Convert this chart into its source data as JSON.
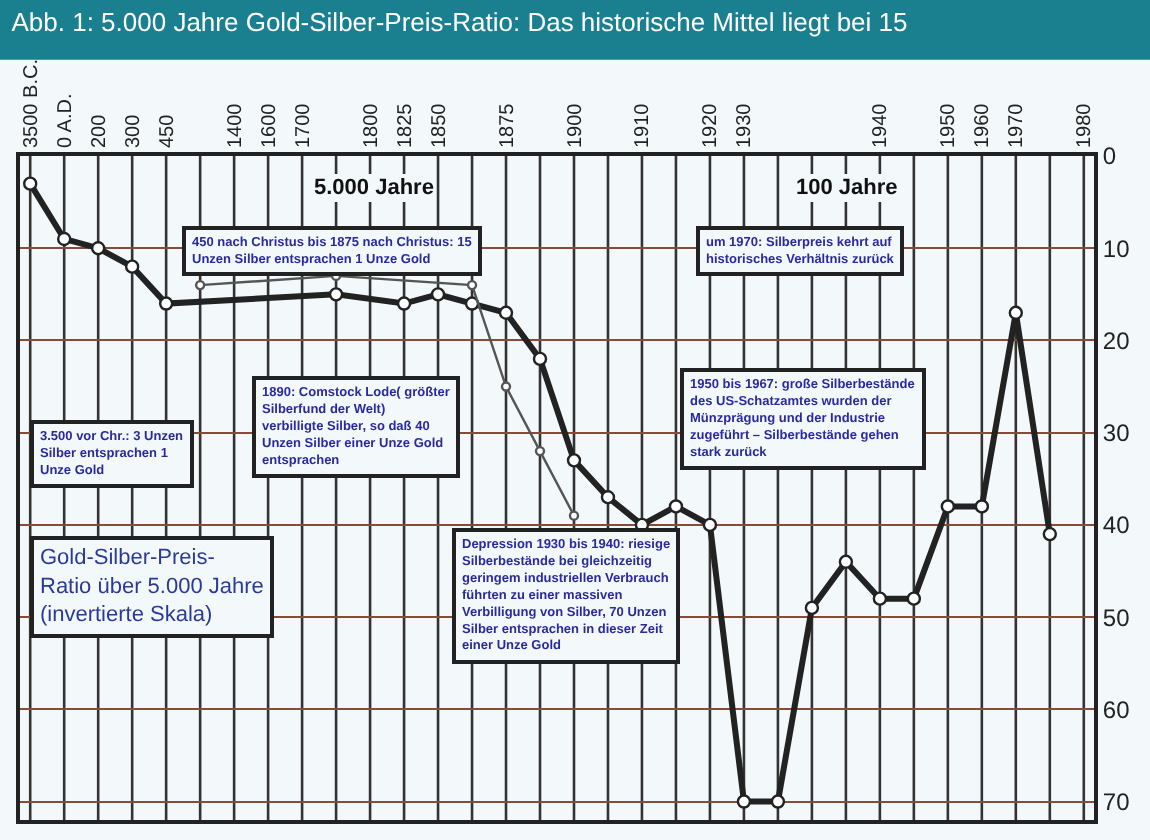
{
  "chart_data": {
    "type": "line",
    "title": "Abb. 1: 5.000 Jahre Gold-Silber-Preis-Ratio: Das historische Mittel liegt bei 15",
    "categories": [
      "3500 B.C.",
      "0 A.D.",
      "200",
      "300",
      "450",
      null,
      "1400",
      "1600",
      "1700",
      null,
      "1800",
      "1825",
      "1850",
      null,
      "1875",
      null,
      "1900",
      null,
      "1910",
      null,
      "1920",
      "1930",
      null,
      null,
      null,
      "1940",
      null,
      "1950",
      "1960",
      "1970",
      null,
      "1980"
    ],
    "series": [
      {
        "color": "#222222",
        "values": [
          3,
          9,
          10,
          12,
          16,
          null,
          null,
          null,
          null,
          15,
          null,
          16,
          15,
          16,
          17,
          22,
          33,
          37,
          40,
          38,
          40,
          70,
          70,
          49,
          44,
          48,
          48,
          38,
          38,
          17,
          41,
          null
        ]
      },
      {
        "color": "#555555",
        "values": [
          null,
          null,
          null,
          null,
          null,
          14,
          null,
          null,
          null,
          13,
          null,
          null,
          null,
          14,
          25,
          32,
          39,
          null,
          null,
          null,
          null,
          null,
          null,
          null,
          null,
          null,
          null,
          null,
          null,
          null,
          null,
          null
        ]
      }
    ],
    "ylim": [
      72,
      0
    ],
    "yticks": [
      0,
      10,
      20,
      30,
      40,
      50,
      60,
      70
    ],
    "grid": true,
    "legend": false,
    "marker": "circle",
    "line_style": "solid",
    "annotations": [
      "5.000 Jahre",
      "100 Jahre",
      "3.500 vor Chr.: 3 Unzen Silber entsprachen 1 Unze Gold",
      "450 nach Christus bis 1875 nach Christus: 15 Unzen Silber entsprachen 1 Unze Gold",
      "1890: Comstock Lode( größter Silberfund der Welt) verbilligte Silber, so daß 40 Unzen Silber einer Unze Gold entsprachen",
      "1950 bis 1967: große Silberbestände des US-Schatzamtes wurden der Münzprägung und der Industrie zugeführt – Silberbestände gehen stark zurück",
      "um 1970: Silberpreis kehrt auf historisches Verhältnis zurück",
      "Depression 1930 bis 1940: riesige Silberbestände bei gleichzeitig geringem industriellen Verbrauch führten zu einer massiven Verbilligung von Silber, 70 Unzen Silber entsprachen in dieser Zeit einer Unze Gold",
      "Gold-Silber-Preis-Ratio über 5.000 Jahre (invertierte Skala)"
    ]
  }
}
